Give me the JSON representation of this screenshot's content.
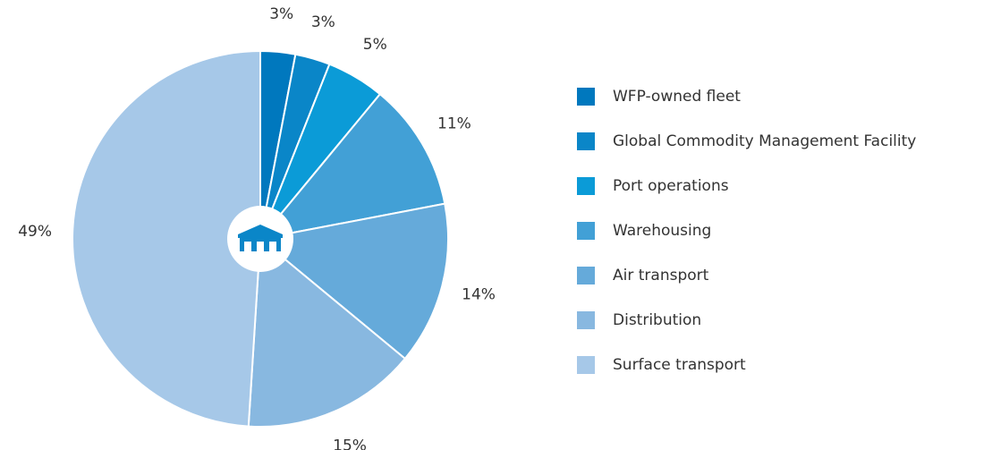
{
  "chart_data": {
    "type": "pie",
    "categories": [
      "WFP-owned fleet",
      "Global Commodity Management Facility",
      "Port operations",
      "Warehousing",
      "Air transport",
      "Distribution",
      "Surface transport"
    ],
    "values": [
      3,
      3,
      5,
      11,
      14,
      15,
      49
    ],
    "value_labels": [
      "3%",
      "3%",
      "5%",
      "11%",
      "14%",
      "15%",
      "49%"
    ],
    "colors": [
      "#0078be",
      "#0a86c8",
      "#0b9bd7",
      "#42a0d6",
      "#65aada",
      "#88b8e0",
      "#a6c8e8"
    ],
    "legend": "right"
  }
}
